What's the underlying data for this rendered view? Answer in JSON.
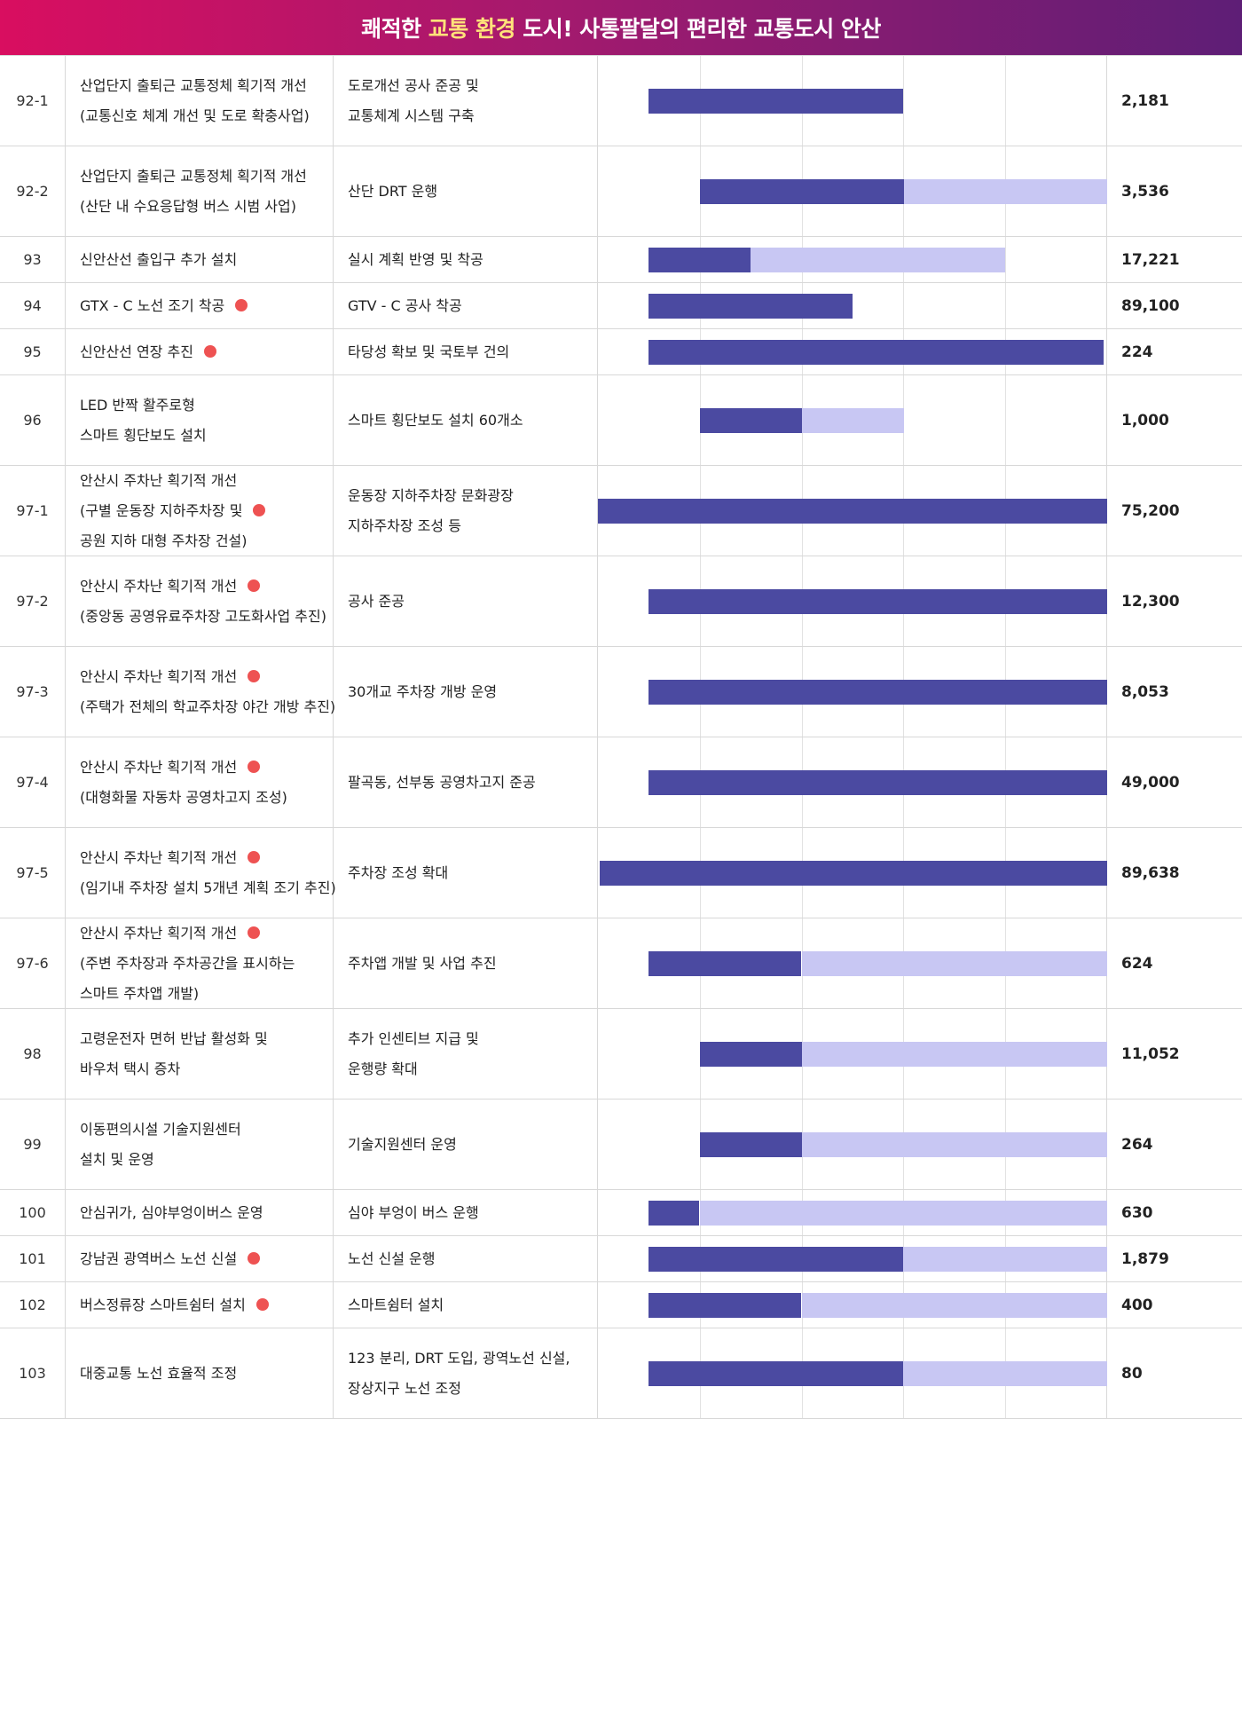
{
  "header": {
    "title_pre": "쾌적한 ",
    "title_hl": "교통 환경",
    "title_post": " 도시! 사통팔달의 편리한 교통도시 안산",
    "colors": {
      "start": "#d90e60",
      "end": "#5e1e76",
      "highlight": "#ffe27a"
    }
  },
  "timeline": {
    "segments": 5,
    "done_color": "#4b4aa1",
    "plan_color": "#c8c7f3",
    "marker_color": "#ee5252"
  },
  "rows": [
    {
      "no": "92-1",
      "task": [
        "산업단지 출퇴근 교통정체 획기적 개선",
        "(교통신호 체계 개선 및 도로 확충사업)"
      ],
      "detail": [
        "도로개선 공사 준공 및",
        "교통체계 시스템 구축"
      ],
      "marked": false,
      "progress": {
        "start": 0.5,
        "done": 3.0,
        "end": 3.0
      },
      "budget": "2,181"
    },
    {
      "no": "92-2",
      "task": [
        "산업단지 출퇴근 교통정체 획기적 개선",
        "(산단 내 수요응답형 버스 시범 사업)"
      ],
      "detail": [
        "산단 DRT 운행"
      ],
      "marked": false,
      "progress": {
        "start": 1.0,
        "done": 3.0,
        "end": 5.0
      },
      "budget": "3,536"
    },
    {
      "no": "93",
      "task": [
        "신안산선 출입구 추가 설치"
      ],
      "detail": [
        "실시 계획 반영 및 착공"
      ],
      "marked": false,
      "progress": {
        "start": 0.5,
        "done": 1.5,
        "end": 4.0
      },
      "budget": "17,221"
    },
    {
      "no": "94",
      "task": [
        "GTX - C 노선 조기 착공"
      ],
      "detail": [
        "GTV - C 공사 착공"
      ],
      "marked": true,
      "progress": {
        "start": 0.5,
        "done": 2.5,
        "end": 2.5
      },
      "budget": "89,100"
    },
    {
      "no": "95",
      "task": [
        "신안산선 연장 추진"
      ],
      "detail": [
        "타당성 확보 및 국토부 건의"
      ],
      "marked": true,
      "progress": {
        "start": 0.5,
        "done": 4.97,
        "end": 4.97
      },
      "budget": "224"
    },
    {
      "no": "96",
      "task": [
        "LED 반짝 활주로형",
        "스마트 횡단보도 설치"
      ],
      "detail": [
        "스마트 횡단보도 설치 60개소"
      ],
      "marked": false,
      "progress": {
        "start": 1.0,
        "done": 2.0,
        "end": 3.0
      },
      "budget": "1,000"
    },
    {
      "no": "97-1",
      "task": [
        "안산시 주차난 획기적 개선",
        "(구별 운동장 지하주차장 및",
        "공원 지하 대형 주차장 건설)"
      ],
      "detail": [
        "운동장 지하주차장 문화광장",
        "지하주차장 조성 등"
      ],
      "marked": true,
      "mark_line": 1,
      "progress": {
        "start": 0.0,
        "done": 5.0,
        "end": 5.0
      },
      "budget": "75,200"
    },
    {
      "no": "97-2",
      "task": [
        "안산시 주차난 획기적 개선",
        "(중앙동 공영유료주차장 고도화사업 추진)"
      ],
      "detail": [
        "공사 준공"
      ],
      "marked": true,
      "mark_line": 0,
      "progress": {
        "start": 0.5,
        "done": 5.0,
        "end": 5.0
      },
      "budget": "12,300"
    },
    {
      "no": "97-3",
      "task": [
        "안산시 주차난 획기적 개선",
        "(주택가 전체의 학교주차장 야간 개방 추진)"
      ],
      "detail": [
        "30개교 주차장 개방 운영"
      ],
      "marked": true,
      "mark_line": 0,
      "progress": {
        "start": 0.5,
        "done": 5.0,
        "end": 5.0
      },
      "budget": "8,053"
    },
    {
      "no": "97-4",
      "task": [
        "안산시 주차난 획기적 개선",
        "(대형화물 자동차 공영차고지 조성)"
      ],
      "detail": [
        "팔곡동, 선부동 공영차고지 준공"
      ],
      "marked": true,
      "mark_line": 0,
      "progress": {
        "start": 0.5,
        "done": 5.0,
        "end": 5.0
      },
      "budget": "49,000"
    },
    {
      "no": "97-5",
      "task": [
        "안산시 주차난 획기적 개선",
        "(임기내 주차장 설치 5개년 계획 조기 추진)"
      ],
      "detail": [
        "주차장 조성 확대"
      ],
      "marked": true,
      "mark_line": 0,
      "progress": {
        "start": 0.02,
        "done": 5.0,
        "end": 5.0
      },
      "budget": "89,638"
    },
    {
      "no": "97-6",
      "task": [
        "안산시 주차난 획기적 개선",
        "(주변 주차장과 주차공간을 표시하는",
        "스마트 주차앱 개발)"
      ],
      "detail": [
        "주차앱 개발 및 사업 추진"
      ],
      "marked": true,
      "mark_line": 0,
      "progress": {
        "start": 0.5,
        "done": 2.0,
        "end": 5.0
      },
      "budget": "624"
    },
    {
      "no": "98",
      "task": [
        "고령운전자 면허 반납 활성화 및",
        "바우처 택시 증차"
      ],
      "detail": [
        "추가 인센티브 지급 및",
        "운행량 확대"
      ],
      "marked": false,
      "progress": {
        "start": 1.0,
        "done": 2.0,
        "end": 5.0
      },
      "budget": "11,052"
    },
    {
      "no": "99",
      "task": [
        "이동편의시설 기술지원센터",
        "설치 및 운영"
      ],
      "detail": [
        "기술지원센터 운영"
      ],
      "marked": false,
      "progress": {
        "start": 1.0,
        "done": 2.0,
        "end": 5.0
      },
      "budget": "264"
    },
    {
      "no": "100",
      "task": [
        "안심귀가, 심야부엉이버스 운영"
      ],
      "detail": [
        "심야 부엉이 버스 운행"
      ],
      "marked": false,
      "progress": {
        "start": 0.5,
        "done": 1.0,
        "end": 5.0
      },
      "budget": "630"
    },
    {
      "no": "101",
      "task": [
        "강남권 광역버스 노선 신설"
      ],
      "detail": [
        "노선 신설 운행"
      ],
      "marked": true,
      "progress": {
        "start": 0.5,
        "done": 3.0,
        "end": 5.0
      },
      "budget": "1,879"
    },
    {
      "no": "102",
      "task": [
        "버스정류장 스마트쉼터 설치"
      ],
      "detail": [
        "스마트쉼터 설치"
      ],
      "marked": true,
      "progress": {
        "start": 0.5,
        "done": 2.0,
        "end": 5.0
      },
      "budget": "400"
    },
    {
      "no": "103",
      "task": [
        "대중교통 노선 효율적 조정"
      ],
      "detail": [
        "123 분리, DRT 도입, 광역노선 신설,",
        "장상지구 노선 조정"
      ],
      "marked": false,
      "progress": {
        "start": 0.5,
        "done": 3.0,
        "end": 5.0
      },
      "budget": "80"
    }
  ]
}
